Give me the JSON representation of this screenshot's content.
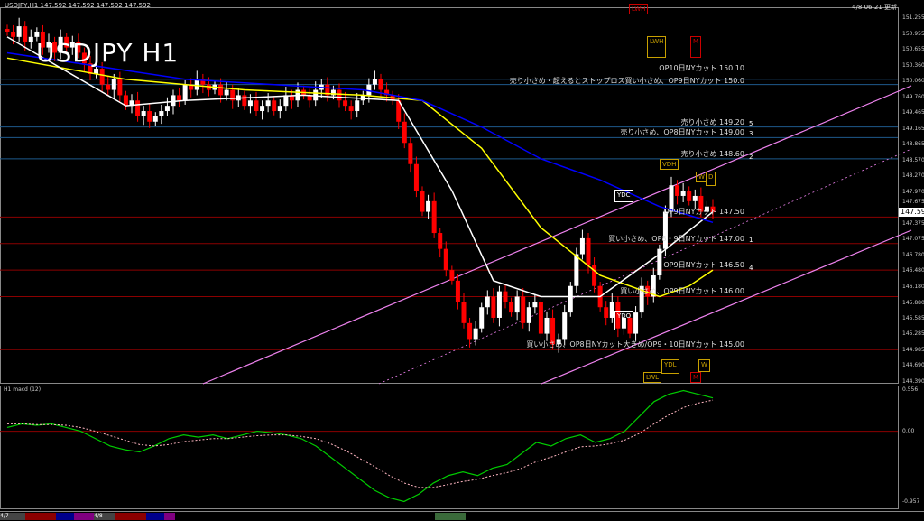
{
  "header": {
    "symbol_info": "USDJPY,H1  147.592 147.592 147.592 147.592",
    "title": "USDJPY H1",
    "datetime": "4/8 06:21 更新"
  },
  "macd_label": "H1  macd (12)",
  "colors": {
    "up": "#ffffff",
    "down": "#ff0000",
    "yellow_ma": "#ffff00",
    "white_ma": "#ffffff",
    "blue_ma": "#0000ff",
    "channel": "#ee82ee",
    "level_blue": "#1e5a8c",
    "level_red": "#8b0000",
    "macd": "#00cc00",
    "signal": "#ffb6c1"
  },
  "levels": [
    {
      "price": 150.1,
      "label": "OP10日NYカット 150.10",
      "color": "blue"
    },
    {
      "price": 150.0,
      "label": "売り小さめ・超えるとストップロス買い小さめ、OP9日NYカット 150.0",
      "color": "blue"
    },
    {
      "price": 149.2,
      "label": "売り小さめ 149.20",
      "color": "blue"
    },
    {
      "price": 149.0,
      "label": "売り小さめ、OP8日NYカット 149.00",
      "color": "blue"
    },
    {
      "price": 148.6,
      "label": "売り小さめ 148.60",
      "color": "blue"
    },
    {
      "price": 147.5,
      "label": "OP9日NYカット 147.50",
      "color": "red"
    },
    {
      "price": 147.0,
      "label": "買い小さめ、OP8・9日NYカット 147.00",
      "color": "red"
    },
    {
      "price": 146.5,
      "label": "OP9日NYカット 146.50",
      "color": "red"
    },
    {
      "price": 146.0,
      "label": "買い小さめ、OP9日NYカット 146.00",
      "color": "red"
    },
    {
      "price": 145.0,
      "label": "買い小さめ、OP8日NYカット大きめ/OP9・10日NYカット 145.00",
      "color": "red"
    }
  ],
  "markers": [
    "LWH",
    "LWH",
    "M",
    "VDH",
    "W",
    "D",
    "YDC",
    "YDO",
    "YDL",
    "LWL",
    "M",
    "W",
    "1",
    "2",
    "3",
    "4",
    "5"
  ],
  "chart_data": {
    "type": "candlestick",
    "ylim": [
      144.39,
      151.255
    ],
    "y_ticks": [
      "151.255",
      "150.955",
      "150.655",
      "150.360",
      "150.060",
      "149.760",
      "149.465",
      "149.165",
      "148.865",
      "148.570",
      "148.270",
      "147.970",
      "147.675",
      "147.375",
      "147.075",
      "146.780",
      "146.480",
      "146.180",
      "145.880",
      "145.585",
      "145.285",
      "144.985",
      "144.690",
      "144.390"
    ],
    "current_price": "147.592",
    "closes": [
      151.0,
      150.9,
      151.1,
      150.8,
      150.9,
      151.0,
      150.7,
      150.8,
      150.6,
      150.9,
      150.7,
      150.8,
      150.6,
      150.4,
      150.2,
      150.3,
      150.0,
      149.9,
      150.1,
      149.8,
      149.6,
      149.7,
      149.4,
      149.5,
      149.3,
      149.4,
      149.5,
      149.6,
      149.8,
      149.7,
      150.0,
      149.9,
      150.1,
      150.0,
      149.9,
      150.0,
      149.8,
      149.9,
      149.7,
      149.8,
      149.6,
      149.7,
      149.5,
      149.6,
      149.7,
      149.5,
      149.6,
      149.8,
      149.7,
      149.9,
      149.8,
      149.7,
      149.9,
      150.0,
      149.8,
      149.9,
      149.7,
      149.6,
      149.5,
      149.7,
      149.8,
      150.0,
      150.1,
      149.9,
      149.8,
      149.7,
      149.3,
      148.9,
      148.5,
      148.0,
      147.6,
      147.8,
      147.2,
      146.9,
      146.5,
      146.3,
      145.9,
      145.5,
      145.2,
      145.4,
      145.8,
      146.0,
      145.6,
      146.1,
      145.9,
      145.7,
      146.0,
      145.5,
      145.8,
      145.9,
      145.3,
      145.6,
      145.1,
      145.2,
      145.7,
      146.2,
      146.8,
      147.1,
      146.6,
      146.2,
      145.8,
      145.6,
      145.9,
      145.4,
      145.6,
      145.3,
      145.7,
      146.2,
      146.0,
      146.4,
      146.9,
      147.6,
      148.1,
      147.9,
      148.0,
      147.8,
      147.9,
      147.6,
      147.7,
      147.592
    ],
    "moving_averages": [
      {
        "color": "yellow",
        "points": [
          [
            0,
            150.5
          ],
          [
            20,
            150.1
          ],
          [
            40,
            149.9
          ],
          [
            60,
            149.8
          ],
          [
            70,
            149.7
          ],
          [
            80,
            148.8
          ],
          [
            90,
            147.3
          ],
          [
            100,
            146.4
          ],
          [
            110,
            146.0
          ],
          [
            115,
            146.2
          ],
          [
            119,
            146.5
          ]
        ]
      },
      {
        "color": "white",
        "points": [
          [
            0,
            150.9
          ],
          [
            20,
            149.6
          ],
          [
            30,
            149.7
          ],
          [
            50,
            149.8
          ],
          [
            66,
            149.7
          ],
          [
            75,
            148.0
          ],
          [
            82,
            146.3
          ],
          [
            90,
            146.0
          ],
          [
            100,
            146.0
          ],
          [
            110,
            146.8
          ],
          [
            119,
            147.6
          ]
        ]
      },
      {
        "color": "blue",
        "points": [
          [
            0,
            150.6
          ],
          [
            30,
            150.1
          ],
          [
            60,
            149.9
          ],
          [
            70,
            149.7
          ],
          [
            80,
            149.2
          ],
          [
            90,
            148.6
          ],
          [
            100,
            148.2
          ],
          [
            110,
            147.7
          ],
          [
            119,
            147.4
          ]
        ]
      }
    ],
    "macd": {
      "ylim": [
        -0.957,
        0.556
      ],
      "y_ticks": [
        "0.556",
        "0.00",
        "-0.957"
      ],
      "macd": [
        0.05,
        0.1,
        0.08,
        0.1,
        0.05,
        0.0,
        -0.1,
        -0.2,
        -0.25,
        -0.28,
        -0.2,
        -0.1,
        -0.05,
        -0.08,
        -0.05,
        -0.1,
        -0.05,
        0.0,
        -0.02,
        -0.05,
        -0.1,
        -0.2,
        -0.35,
        -0.5,
        -0.65,
        -0.8,
        -0.9,
        -0.95,
        -0.85,
        -0.7,
        -0.6,
        -0.55,
        -0.6,
        -0.5,
        -0.45,
        -0.3,
        -0.15,
        -0.2,
        -0.1,
        -0.05,
        -0.15,
        -0.1,
        0.0,
        0.2,
        0.4,
        0.5,
        0.55,
        0.5,
        0.45
      ],
      "signal": [
        0.1,
        0.1,
        0.09,
        0.09,
        0.08,
        0.05,
        0.0,
        -0.06,
        -0.12,
        -0.18,
        -0.2,
        -0.18,
        -0.14,
        -0.12,
        -0.1,
        -0.1,
        -0.08,
        -0.06,
        -0.05,
        -0.05,
        -0.07,
        -0.1,
        -0.17,
        -0.26,
        -0.37,
        -0.48,
        -0.6,
        -0.7,
        -0.76,
        -0.76,
        -0.72,
        -0.68,
        -0.65,
        -0.6,
        -0.56,
        -0.5,
        -0.41,
        -0.35,
        -0.28,
        -0.21,
        -0.2,
        -0.17,
        -0.12,
        -0.03,
        0.1,
        0.22,
        0.32,
        0.38,
        0.42
      ]
    }
  },
  "bottom_bar": {
    "labels": [
      "4/7",
      "4/8"
    ]
  }
}
